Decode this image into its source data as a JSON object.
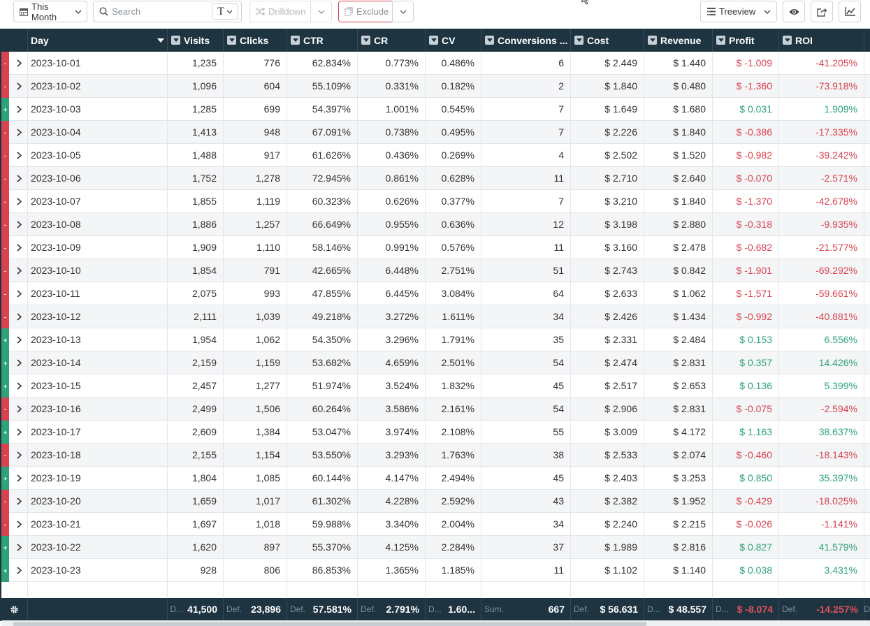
{
  "toolbar": {
    "date_range": "This Month",
    "search_placeholder": "Search",
    "search_type_glyph": "T",
    "drilldown_label": "Drilldown",
    "exclude_label": "Exclude",
    "view_mode": "Treeview"
  },
  "colors": {
    "header_bg": "#1e3441",
    "negative": "#d9434f",
    "positive": "#2ea37a"
  },
  "columns": {
    "day": "Day",
    "visits": "Visits",
    "clicks": "Clicks",
    "ctr": "CTR",
    "cr": "CR",
    "cv": "CV",
    "conversions": "Conversions ...",
    "cost": "Cost",
    "revenue": "Revenue",
    "profit": "Profit",
    "roi": "ROI"
  },
  "rows": [
    {
      "sign": "-",
      "day": "2023-10-01",
      "visits": "1,235",
      "clicks": "776",
      "ctr": "62.834%",
      "cr": "0.773%",
      "cv": "0.486%",
      "conversions": "6",
      "cost": "$ 2.449",
      "revenue": "$ 1.440",
      "profit": "$ -1.009",
      "roi": "-41.205%"
    },
    {
      "sign": "-",
      "day": "2023-10-02",
      "visits": "1,096",
      "clicks": "604",
      "ctr": "55.109%",
      "cr": "0.331%",
      "cv": "0.182%",
      "conversions": "2",
      "cost": "$ 1.840",
      "revenue": "$ 0.480",
      "profit": "$ -1.360",
      "roi": "-73.918%"
    },
    {
      "sign": "+",
      "day": "2023-10-03",
      "visits": "1,285",
      "clicks": "699",
      "ctr": "54.397%",
      "cr": "1.001%",
      "cv": "0.545%",
      "conversions": "7",
      "cost": "$ 1.649",
      "revenue": "$ 1.680",
      "profit": "$ 0.031",
      "roi": "1.909%"
    },
    {
      "sign": "-",
      "day": "2023-10-04",
      "visits": "1,413",
      "clicks": "948",
      "ctr": "67.091%",
      "cr": "0.738%",
      "cv": "0.495%",
      "conversions": "7",
      "cost": "$ 2.226",
      "revenue": "$ 1.840",
      "profit": "$ -0.386",
      "roi": "-17.335%"
    },
    {
      "sign": "-",
      "day": "2023-10-05",
      "visits": "1,488",
      "clicks": "917",
      "ctr": "61.626%",
      "cr": "0.436%",
      "cv": "0.269%",
      "conversions": "4",
      "cost": "$ 2.502",
      "revenue": "$ 1.520",
      "profit": "$ -0.982",
      "roi": "-39.242%"
    },
    {
      "sign": "-",
      "day": "2023-10-06",
      "visits": "1,752",
      "clicks": "1,278",
      "ctr": "72.945%",
      "cr": "0.861%",
      "cv": "0.628%",
      "conversions": "11",
      "cost": "$ 2.710",
      "revenue": "$ 2.640",
      "profit": "$ -0.070",
      "roi": "-2.571%"
    },
    {
      "sign": "-",
      "day": "2023-10-07",
      "visits": "1,855",
      "clicks": "1,119",
      "ctr": "60.323%",
      "cr": "0.626%",
      "cv": "0.377%",
      "conversions": "7",
      "cost": "$ 3.210",
      "revenue": "$ 1.840",
      "profit": "$ -1.370",
      "roi": "-42.678%"
    },
    {
      "sign": "-",
      "day": "2023-10-08",
      "visits": "1,886",
      "clicks": "1,257",
      "ctr": "66.649%",
      "cr": "0.955%",
      "cv": "0.636%",
      "conversions": "12",
      "cost": "$ 3.198",
      "revenue": "$ 2.880",
      "profit": "$ -0.318",
      "roi": "-9.935%"
    },
    {
      "sign": "-",
      "day": "2023-10-09",
      "visits": "1,909",
      "clicks": "1,110",
      "ctr": "58.146%",
      "cr": "0.991%",
      "cv": "0.576%",
      "conversions": "11",
      "cost": "$ 3.160",
      "revenue": "$ 2.478",
      "profit": "$ -0.682",
      "roi": "-21.577%"
    },
    {
      "sign": "-",
      "day": "2023-10-10",
      "visits": "1,854",
      "clicks": "791",
      "ctr": "42.665%",
      "cr": "6.448%",
      "cv": "2.751%",
      "conversions": "51",
      "cost": "$ 2.743",
      "revenue": "$ 0.842",
      "profit": "$ -1.901",
      "roi": "-69.292%"
    },
    {
      "sign": "-",
      "day": "2023-10-11",
      "visits": "2,075",
      "clicks": "993",
      "ctr": "47.855%",
      "cr": "6.445%",
      "cv": "3.084%",
      "conversions": "64",
      "cost": "$ 2.633",
      "revenue": "$ 1.062",
      "profit": "$ -1.571",
      "roi": "-59.661%"
    },
    {
      "sign": "-",
      "day": "2023-10-12",
      "visits": "2,111",
      "clicks": "1,039",
      "ctr": "49.218%",
      "cr": "3.272%",
      "cv": "1.611%",
      "conversions": "34",
      "cost": "$ 2.426",
      "revenue": "$ 1.434",
      "profit": "$ -0.992",
      "roi": "-40.881%"
    },
    {
      "sign": "+",
      "day": "2023-10-13",
      "visits": "1,954",
      "clicks": "1,062",
      "ctr": "54.350%",
      "cr": "3.296%",
      "cv": "1.791%",
      "conversions": "35",
      "cost": "$ 2.331",
      "revenue": "$ 2.484",
      "profit": "$ 0.153",
      "roi": "6.556%"
    },
    {
      "sign": "+",
      "day": "2023-10-14",
      "visits": "2,159",
      "clicks": "1,159",
      "ctr": "53.682%",
      "cr": "4.659%",
      "cv": "2.501%",
      "conversions": "54",
      "cost": "$ 2.474",
      "revenue": "$ 2.831",
      "profit": "$ 0.357",
      "roi": "14.426%"
    },
    {
      "sign": "+",
      "day": "2023-10-15",
      "visits": "2,457",
      "clicks": "1,277",
      "ctr": "51.974%",
      "cr": "3.524%",
      "cv": "1.832%",
      "conversions": "45",
      "cost": "$ 2.517",
      "revenue": "$ 2.653",
      "profit": "$ 0.136",
      "roi": "5.399%"
    },
    {
      "sign": "-",
      "day": "2023-10-16",
      "visits": "2,499",
      "clicks": "1,506",
      "ctr": "60.264%",
      "cr": "3.586%",
      "cv": "2.161%",
      "conversions": "54",
      "cost": "$ 2.906",
      "revenue": "$ 2.831",
      "profit": "$ -0.075",
      "roi": "-2.594%"
    },
    {
      "sign": "+",
      "day": "2023-10-17",
      "visits": "2,609",
      "clicks": "1,384",
      "ctr": "53.047%",
      "cr": "3.974%",
      "cv": "2.108%",
      "conversions": "55",
      "cost": "$ 3.009",
      "revenue": "$ 4.172",
      "profit": "$ 1.163",
      "roi": "38.637%"
    },
    {
      "sign": "-",
      "day": "2023-10-18",
      "visits": "2,155",
      "clicks": "1,154",
      "ctr": "53.550%",
      "cr": "3.293%",
      "cv": "1.763%",
      "conversions": "38",
      "cost": "$ 2.533",
      "revenue": "$ 2.074",
      "profit": "$ -0.460",
      "roi": "-18.143%"
    },
    {
      "sign": "+",
      "day": "2023-10-19",
      "visits": "1,804",
      "clicks": "1,085",
      "ctr": "60.144%",
      "cr": "4.147%",
      "cv": "2.494%",
      "conversions": "45",
      "cost": "$ 2.403",
      "revenue": "$ 3.253",
      "profit": "$ 0.850",
      "roi": "35.397%"
    },
    {
      "sign": "-",
      "day": "2023-10-20",
      "visits": "1,659",
      "clicks": "1,017",
      "ctr": "61.302%",
      "cr": "4.228%",
      "cv": "2.592%",
      "conversions": "43",
      "cost": "$ 2.382",
      "revenue": "$ 1.952",
      "profit": "$ -0.429",
      "roi": "-18.025%"
    },
    {
      "sign": "-",
      "day": "2023-10-21",
      "visits": "1,697",
      "clicks": "1,018",
      "ctr": "59.988%",
      "cr": "3.340%",
      "cv": "2.004%",
      "conversions": "34",
      "cost": "$ 2.240",
      "revenue": "$ 2.215",
      "profit": "$ -0.026",
      "roi": "-1.141%"
    },
    {
      "sign": "+",
      "day": "2023-10-22",
      "visits": "1,620",
      "clicks": "897",
      "ctr": "55.370%",
      "cr": "4.125%",
      "cv": "2.284%",
      "conversions": "37",
      "cost": "$ 1.989",
      "revenue": "$ 2.816",
      "profit": "$ 0.827",
      "roi": "41.579%"
    },
    {
      "sign": "+",
      "day": "2023-10-23",
      "visits": "928",
      "clicks": "806",
      "ctr": "86.853%",
      "cr": "1.365%",
      "cv": "1.185%",
      "conversions": "11",
      "cost": "$ 1.102",
      "revenue": "$ 1.140",
      "profit": "$ 0.038",
      "roi": "3.431%"
    }
  ],
  "footer": {
    "visits": {
      "agg": "D...",
      "value": "41,500"
    },
    "clicks": {
      "agg": "Def.",
      "value": "23,896"
    },
    "ctr": {
      "agg": "Def.",
      "value": "57.581%"
    },
    "cr": {
      "agg": "Def.",
      "value": "2.791%"
    },
    "cv": {
      "agg": "D...",
      "value": "1.60..."
    },
    "conversions": {
      "agg": "Sum.",
      "value": "667"
    },
    "cost": {
      "agg": "Def.",
      "value": "$ 56.631"
    },
    "revenue": {
      "agg": "D...",
      "value": "$ 48.557"
    },
    "profit": {
      "agg": "D...",
      "value": "$ -8.074"
    },
    "roi": {
      "agg": "Def.",
      "value": "-14.257%"
    },
    "extra": {
      "agg": "D"
    }
  }
}
